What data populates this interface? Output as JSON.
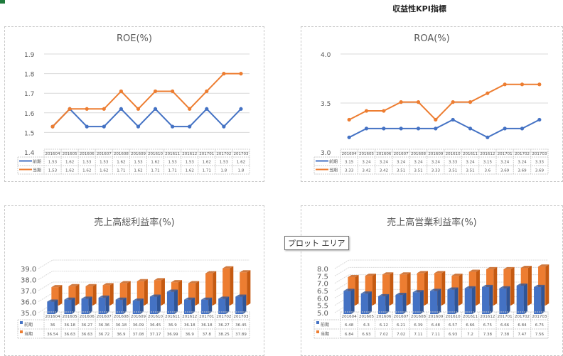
{
  "page": {
    "title": "収益性KPI指標"
  },
  "tooltip": {
    "label": "プロット エリア"
  },
  "colors": {
    "prev": "#4472c4",
    "curr": "#ed7d31",
    "prev_dark": "#2f5597",
    "curr_dark": "#c55a11",
    "grid": "#d9d9d9",
    "axis_text": "#595959"
  },
  "periods": [
    "201604",
    "201605",
    "201606",
    "201607",
    "201608",
    "201609",
    "201610",
    "201611",
    "201612",
    "201701",
    "201702",
    "201703"
  ],
  "legend": {
    "prev": "前期",
    "curr": "当期"
  },
  "chart_data": [
    {
      "id": "roe",
      "type": "line",
      "title": "ROE(%)",
      "categories": [
        "201604",
        "201605",
        "201606",
        "201607",
        "201608",
        "201609",
        "201610",
        "201611",
        "201612",
        "201701",
        "201702",
        "201703"
      ],
      "series": [
        {
          "name": "前期",
          "values": [
            1.53,
            1.62,
            1.53,
            1.53,
            1.62,
            1.53,
            1.62,
            1.53,
            1.53,
            1.62,
            1.53,
            1.62
          ],
          "labels": [
            "1.53",
            "1.62",
            "1.53",
            "1.53",
            "1.62",
            "1.53",
            "1.62",
            "1.53",
            "1.53",
            "1.62",
            "1.53",
            "1.62"
          ]
        },
        {
          "name": "当期",
          "values": [
            1.53,
            1.62,
            1.62,
            1.62,
            1.71,
            1.62,
            1.71,
            1.71,
            1.62,
            1.71,
            1.8,
            1.8
          ],
          "labels": [
            "1.53",
            "1.62",
            "1.62",
            "1.62",
            "1.71",
            "1.62",
            "1.71",
            "1.71",
            "1.62",
            "1.71",
            "1.8",
            "1.8"
          ]
        }
      ],
      "ylim": [
        1.4,
        1.9
      ],
      "yticks": [
        "1.4",
        "1.5",
        "1.6",
        "1.7",
        "1.8",
        "1.9"
      ],
      "grid": true,
      "legend_position": "data-table"
    },
    {
      "id": "roa",
      "type": "line",
      "title": "ROA(%)",
      "categories": [
        "201604",
        "201605",
        "201606",
        "201607",
        "201608",
        "201609",
        "201610",
        "201611",
        "201612",
        "201701",
        "201702",
        "201703"
      ],
      "series": [
        {
          "name": "前期",
          "values": [
            3.15,
            3.24,
            3.24,
            3.24,
            3.24,
            3.24,
            3.33,
            3.24,
            3.15,
            3.24,
            3.24,
            3.33
          ],
          "labels": [
            "3.15",
            "3.24",
            "3.24",
            "3.24",
            "3.24",
            "3.24",
            "3.33",
            "3.24",
            "3.15",
            "3.24",
            "3.24",
            "3.33"
          ]
        },
        {
          "name": "当期",
          "values": [
            3.33,
            3.42,
            3.42,
            3.51,
            3.51,
            3.33,
            3.51,
            3.51,
            3.6,
            3.69,
            3.69,
            3.69
          ],
          "labels": [
            "3.33",
            "3.42",
            "3.42",
            "3.51",
            "3.51",
            "3.33",
            "3.51",
            "3.51",
            "3.6",
            "3.69",
            "3.69",
            "3.69"
          ]
        }
      ],
      "ylim": [
        3.0,
        4.0
      ],
      "yticks": [
        "3.0",
        "3.5",
        "4.0"
      ],
      "grid": true,
      "legend_position": "data-table"
    },
    {
      "id": "gross_margin",
      "type": "bar",
      "title": "売上高総利益率(%)",
      "categories": [
        "201604",
        "201605",
        "201606",
        "201607",
        "201608",
        "201609",
        "201610",
        "201611",
        "201612",
        "201701",
        "201702",
        "201703"
      ],
      "series": [
        {
          "name": "前期",
          "values": [
            36,
            36.18,
            36.27,
            36.36,
            36.18,
            36.09,
            36.45,
            36.9,
            36.18,
            36.18,
            36.27,
            36.45
          ],
          "labels": [
            "36",
            "36.18",
            "36.27",
            "36.36",
            "36.18",
            "36.09",
            "36.45",
            "36.9",
            "36.18",
            "36.18",
            "36.27",
            "36.45"
          ]
        },
        {
          "name": "当期",
          "values": [
            36.54,
            36.63,
            36.63,
            36.72,
            36.9,
            37.08,
            37.17,
            36.99,
            36.9,
            37.8,
            38.25,
            37.89
          ],
          "labels": [
            "36.54",
            "36.63",
            "36.63",
            "36.72",
            "36.9",
            "37.08",
            "37.17",
            "36.99",
            "36.9",
            "37.8",
            "38.25",
            "37.89"
          ]
        }
      ],
      "ylim": [
        35.0,
        39.0
      ],
      "yticks": [
        "35.0",
        "36.0",
        "37.0",
        "38.0",
        "39.0"
      ],
      "grid": true,
      "style": "3d-clustered",
      "legend_position": "data-table"
    },
    {
      "id": "operating_margin",
      "type": "bar",
      "title": "売上高営業利益率(%)",
      "categories": [
        "201604",
        "201605",
        "201606",
        "201607",
        "201608",
        "201609",
        "201610",
        "201611",
        "201612",
        "201701",
        "201702",
        "201703"
      ],
      "series": [
        {
          "name": "前期",
          "values": [
            6.48,
            6.3,
            6.12,
            6.21,
            6.39,
            6.48,
            6.57,
            6.66,
            6.75,
            6.66,
            6.84,
            6.75
          ],
          "labels": [
            "6.48",
            "6.3",
            "6.12",
            "6.21",
            "6.39",
            "6.48",
            "6.57",
            "6.66",
            "6.75",
            "6.66",
            "6.84",
            "6.75"
          ]
        },
        {
          "name": "当期",
          "values": [
            6.84,
            6.93,
            7.02,
            7.02,
            7.11,
            7.11,
            6.93,
            7.2,
            7.38,
            7.38,
            7.47,
            7.56
          ],
          "labels": [
            "6.84",
            "6.93",
            "7.02",
            "7.02",
            "7.11",
            "7.11",
            "6.93",
            "7.2",
            "7.38",
            "7.38",
            "7.47",
            "7.56"
          ]
        }
      ],
      "ylim": [
        5.0,
        8.0
      ],
      "yticks": [
        "5.0",
        "5.5",
        "6.0",
        "6.5",
        "7.0",
        "7.5",
        "8.0"
      ],
      "grid": true,
      "style": "3d-clustered",
      "legend_position": "data-table"
    }
  ]
}
